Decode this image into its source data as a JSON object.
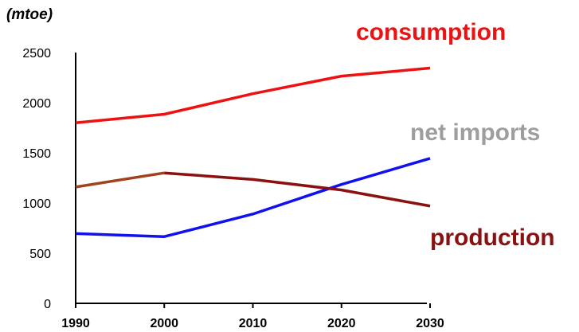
{
  "chart_data": {
    "type": "line",
    "unit_label": "(mtoe)",
    "x": [
      1990,
      2000,
      2010,
      2020,
      2030
    ],
    "x_tick_labels": [
      "1990",
      "2000",
      "2010",
      "2020",
      "2030"
    ],
    "ylim": [
      0,
      2500
    ],
    "y_tick_labels": [
      "0",
      "500",
      "1000",
      "1500",
      "2000",
      "2500"
    ],
    "grid": false,
    "series": [
      {
        "key": "consumption",
        "name": "consumption",
        "color": "#ee1111",
        "values": [
          1800,
          1885,
          2090,
          2265,
          2345
        ]
      },
      {
        "key": "net_imports",
        "name": "net imports",
        "color": "#1111ee",
        "values": [
          695,
          665,
          890,
          1185,
          1445
        ]
      },
      {
        "key": "production",
        "name": "production",
        "color": "#8b1010",
        "segment_color": "#a0431a",
        "values": [
          1160,
          1300,
          1235,
          1130,
          970
        ]
      }
    ],
    "legend": [
      {
        "series": "consumption",
        "label": "consumption",
        "color": "#ee1111"
      },
      {
        "series": "net_imports",
        "label": "net imports",
        "color": "#9e9e9e"
      },
      {
        "series": "production",
        "label": "production",
        "color": "#8b1010"
      }
    ]
  }
}
